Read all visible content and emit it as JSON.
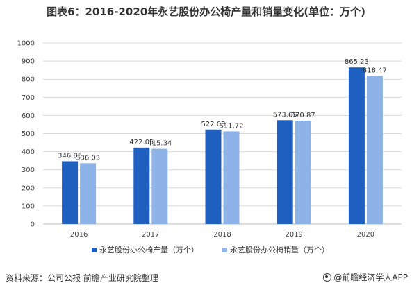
{
  "title": "图表6：2016-2020年永艺股份办公椅产量和销量变化(单位：万个)",
  "footer": {
    "source": "资料来源：公司公报 前瞻产业研究院整理",
    "brand": "@前瞻经济学人APP",
    "brand_icon": "logo-icon"
  },
  "colors": {
    "production": "#1F5FBF",
    "sales": "#8DB3E8",
    "grid": "#D9D9D9",
    "axis": "#BFBFBF"
  },
  "chart_data": {
    "type": "bar",
    "title": "",
    "xlabel": "",
    "ylabel": "",
    "categories": [
      "2016",
      "2017",
      "2018",
      "2019",
      "2020"
    ],
    "ylim": [
      0,
      1000
    ],
    "yticks": [
      0,
      100,
      200,
      300,
      400,
      500,
      600,
      700,
      800,
      900,
      1000
    ],
    "grid": true,
    "legend_position": "bottom",
    "series": [
      {
        "name": "永艺股份办公椅产量（万个）",
        "values": [
          346.85,
          422.05,
          522.03,
          573.65,
          865.23
        ],
        "labels": [
          "346.85",
          "422.05",
          "522.03",
          "573.65",
          "865.23"
        ]
      },
      {
        "name": "永艺股份办公椅销量（万个）",
        "values": [
          336.03,
          415.34,
          511.72,
          570.87,
          818.47
        ],
        "labels": [
          "336.03",
          "415.34",
          "511.72",
          "570.87",
          "818.47"
        ]
      }
    ]
  }
}
